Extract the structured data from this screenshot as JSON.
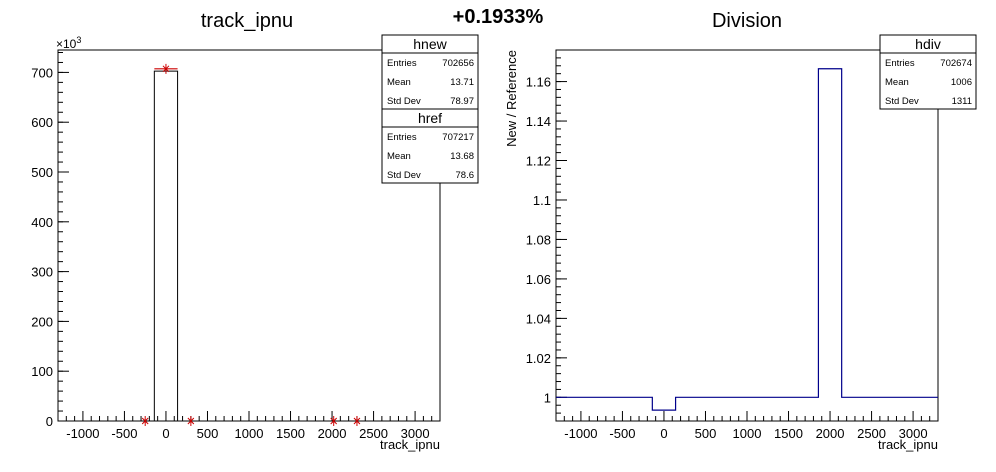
{
  "header": {
    "percent": "+0.1933%"
  },
  "chart_data": [
    {
      "type": "histogram",
      "title": "track_ipnu",
      "xlabel": "track_ipnu",
      "ylabel": "",
      "y_exponent": "×10",
      "y_exponent_power": "3",
      "xlim": [
        -1300,
        3300
      ],
      "ylim": [
        0,
        745000
      ],
      "x_ticks": [
        -1000,
        -500,
        0,
        500,
        1000,
        1500,
        2000,
        2500,
        3000
      ],
      "y_ticks": [
        0,
        100,
        200,
        300,
        400,
        500,
        600,
        700
      ],
      "y_tick_scale": 1000,
      "series": [
        {
          "name": "hnew",
          "color": "#000000",
          "bins": [
            [
              -140,
              140,
              702656
            ]
          ]
        },
        {
          "name": "href",
          "color": "#cc0000",
          "bins": [
            [
              -140,
              140,
              707217
            ]
          ],
          "markers_x": [
            -250,
            0,
            300,
            2020,
            2300
          ],
          "markers_y": [
            0,
            707217,
            0,
            0,
            0
          ]
        }
      ],
      "stats": [
        {
          "name": "hnew",
          "rows": [
            {
              "label": "Entries",
              "value": "702656"
            },
            {
              "label": "Mean",
              "value": "13.71"
            },
            {
              "label": "Std Dev",
              "value": "78.97"
            }
          ]
        },
        {
          "name": "href",
          "rows": [
            {
              "label": "Entries",
              "value": "707217"
            },
            {
              "label": "Mean",
              "value": "13.68"
            },
            {
              "label": "Std Dev",
              "value": "78.6"
            }
          ]
        }
      ]
    },
    {
      "type": "histogram",
      "title": "Division",
      "xlabel": "track_ipnu",
      "ylabel": "New / Reference",
      "xlim": [
        -1300,
        3300
      ],
      "ylim": [
        0.988,
        1.176
      ],
      "x_ticks": [
        -1000,
        -500,
        0,
        500,
        1000,
        1500,
        2000,
        2500,
        3000
      ],
      "y_ticks": [
        1,
        1.02,
        1.04,
        1.06,
        1.08,
        1.1,
        1.12,
        1.14,
        1.16
      ],
      "y_tick_labels": [
        "1",
        "1.02",
        "1.04",
        "1.06",
        "1.08",
        "1.1",
        "1.12",
        "1.14",
        "1.16"
      ],
      "series": [
        {
          "name": "hdiv",
          "color": "#00008b",
          "steps": [
            [
              -1300,
              1
            ],
            [
              -140,
              0.9935
            ],
            [
              140,
              1
            ],
            [
              1860,
              1.1665
            ],
            [
              2140,
              1
            ],
            [
              3300,
              1
            ]
          ]
        }
      ],
      "stats": [
        {
          "name": "hdiv",
          "rows": [
            {
              "label": "Entries",
              "value": "702674"
            },
            {
              "label": "Mean",
              "value": "1006"
            },
            {
              "label": "Std Dev",
              "value": "1311"
            }
          ]
        }
      ]
    }
  ]
}
